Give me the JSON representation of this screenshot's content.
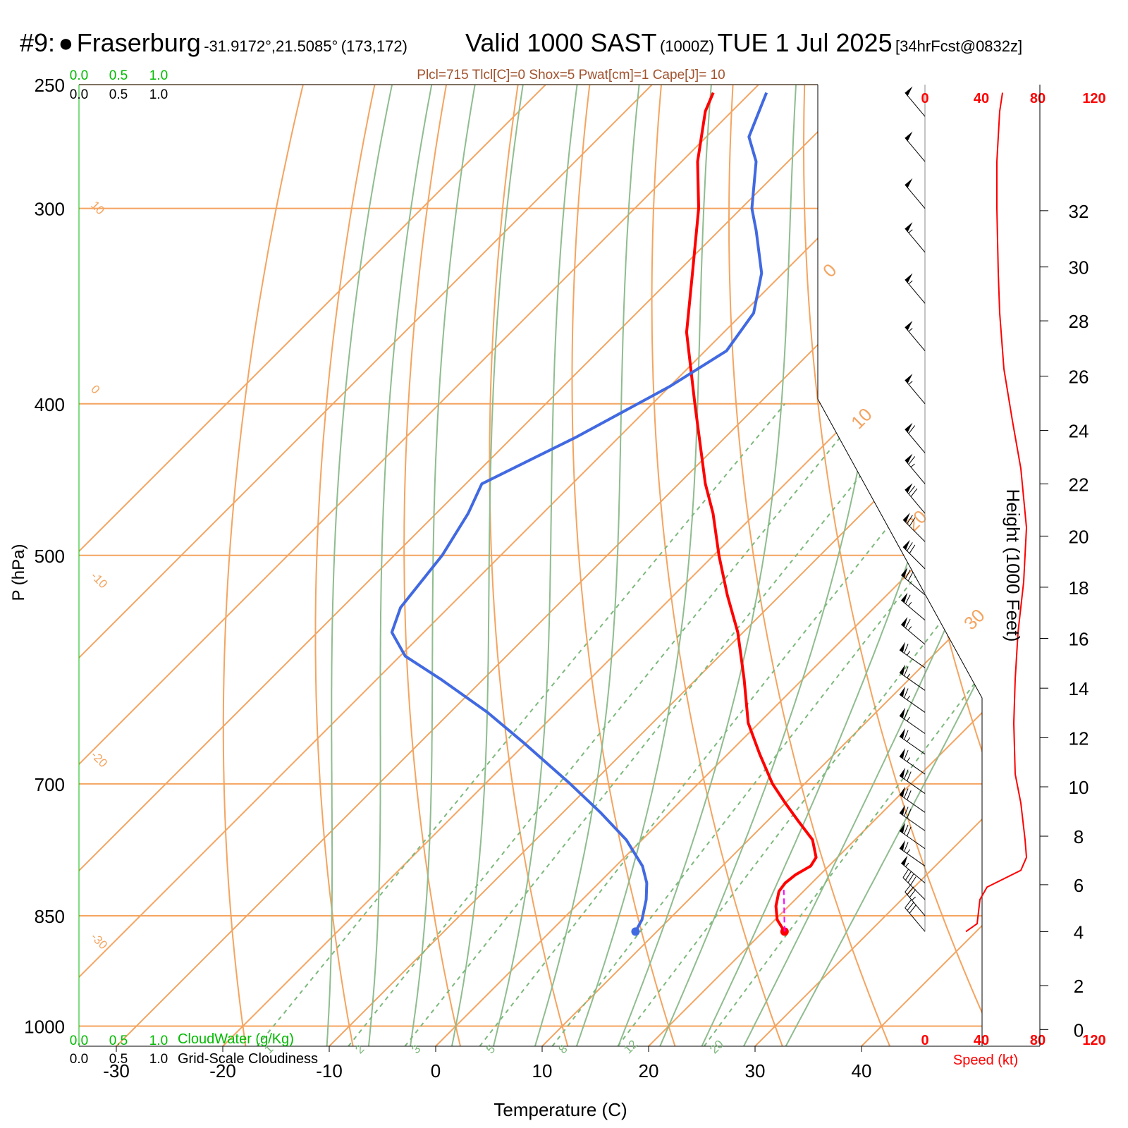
{
  "header": {
    "station_index": "#9:",
    "station_name": "Fraserburg",
    "coords": "-31.9172°,21.5085°",
    "grid": "(173,172)",
    "valid_label": "Valid 1000 SAST",
    "valid_z": "(1000Z)",
    "valid_date": "TUE 1 Jul 2025",
    "forecast": "[34hrFcst@0832z]"
  },
  "indices": "Plcl=715 Tlcl[C]=0 Shox=5 Pwat[cm]=1 Cape[J]= 10",
  "cloud_scale": {
    "ticks": [
      "0.0",
      "0.5",
      "1.0"
    ],
    "cloudwater_label": "CloudWater (g/Kg)",
    "cloudiness_label": "Grid-Scale Cloudiness"
  },
  "colors": {
    "temperature": "#ff0000",
    "dewpoint": "#4169e1",
    "isotherm": "#f4a460",
    "dry_adiabat": "#f4a460",
    "moist_adiabat": "#8fbc8f",
    "mixing_ratio": "#7cb87c",
    "parcel": "#ff00ff",
    "speed_axis": "#ff0000",
    "cloud_axis": "#00bb00"
  },
  "chart_data": {
    "type": "skew-t",
    "xlabel": "Temperature (C)",
    "ylabel": "P (hPa)",
    "x_ticks": [
      -30,
      -20,
      -10,
      0,
      10,
      20,
      30,
      40
    ],
    "p_ticks": [
      250,
      300,
      400,
      500,
      700,
      850,
      1000
    ],
    "p_range": [
      250,
      1030
    ],
    "x_range_at_bottom": [
      -33,
      48
    ],
    "temperature_profile": [
      {
        "p": 870,
        "t": 22.0
      },
      {
        "p": 855,
        "t": 20.2
      },
      {
        "p": 838,
        "t": 18.8
      },
      {
        "p": 820,
        "t": 17.7
      },
      {
        "p": 810,
        "t": 17.5
      },
      {
        "p": 800,
        "t": 17.7
      },
      {
        "p": 790,
        "t": 18.3
      },
      {
        "p": 780,
        "t": 18.0
      },
      {
        "p": 760,
        "t": 16.0
      },
      {
        "p": 740,
        "t": 13.0
      },
      {
        "p": 720,
        "t": 10.0
      },
      {
        "p": 700,
        "t": 7.0
      },
      {
        "p": 670,
        "t": 3.0
      },
      {
        "p": 640,
        "t": -1.0
      },
      {
        "p": 600,
        "t": -5.5
      },
      {
        "p": 560,
        "t": -10.5
      },
      {
        "p": 530,
        "t": -15.0
      },
      {
        "p": 500,
        "t": -19.5
      },
      {
        "p": 470,
        "t": -24.0
      },
      {
        "p": 450,
        "t": -27.5
      },
      {
        "p": 400,
        "t": -36.0
      },
      {
        "p": 360,
        "t": -43.5
      },
      {
        "p": 330,
        "t": -48.5
      },
      {
        "p": 300,
        "t": -54.0
      },
      {
        "p": 280,
        "t": -58.5
      },
      {
        "p": 260,
        "t": -62.5
      },
      {
        "p": 253,
        "t": -63.5
      }
    ],
    "dewpoint_profile": [
      {
        "p": 870,
        "t": 8.0
      },
      {
        "p": 855,
        "t": 7.5
      },
      {
        "p": 830,
        "t": 6.0
      },
      {
        "p": 810,
        "t": 4.5
      },
      {
        "p": 790,
        "t": 2.5
      },
      {
        "p": 760,
        "t": -1.5
      },
      {
        "p": 730,
        "t": -6.5
      },
      {
        "p": 700,
        "t": -12.0
      },
      {
        "p": 660,
        "t": -20.0
      },
      {
        "p": 630,
        "t": -26.5
      },
      {
        "p": 600,
        "t": -34.0
      },
      {
        "p": 580,
        "t": -39.5
      },
      {
        "p": 560,
        "t": -43.0
      },
      {
        "p": 540,
        "t": -44.5
      },
      {
        "p": 500,
        "t": -45.5
      },
      {
        "p": 470,
        "t": -47.0
      },
      {
        "p": 450,
        "t": -48.5
      },
      {
        "p": 420,
        "t": -44.0
      },
      {
        "p": 390,
        "t": -40.0
      },
      {
        "p": 370,
        "t": -38.0
      },
      {
        "p": 350,
        "t": -39.0
      },
      {
        "p": 330,
        "t": -42.0
      },
      {
        "p": 310,
        "t": -46.5
      },
      {
        "p": 300,
        "t": -49.0
      },
      {
        "p": 280,
        "t": -53.0
      },
      {
        "p": 270,
        "t": -56.0
      },
      {
        "p": 253,
        "t": -58.5
      }
    ],
    "parcel_path": [
      {
        "p": 870,
        "t": 22.0
      },
      {
        "p": 818,
        "t": 18.0
      }
    ],
    "isotherms": [
      -80,
      -70,
      -60,
      -50,
      -40,
      -30,
      -20,
      -10,
      0,
      10,
      20,
      30,
      40
    ],
    "isotherm_labels": [
      "10",
      "0",
      "-10",
      "-20",
      "-30",
      "0",
      "10",
      "20",
      "30"
    ],
    "dry_adiabats_theta_c": [
      -20,
      -10,
      0,
      10,
      20,
      30,
      40,
      50,
      60,
      70,
      80,
      90,
      100,
      110,
      120,
      130,
      140
    ],
    "moist_adiabats_thetaw_c": [
      -12,
      -8,
      -4,
      0,
      4,
      8,
      12,
      16,
      20,
      24,
      28,
      32
    ],
    "mixing_ratio_lines_gkg": [
      1,
      2,
      3,
      5,
      8,
      12,
      20
    ],
    "mixing_ratio_labels": [
      "1",
      "2",
      "3",
      "5",
      "8",
      "12",
      "20"
    ],
    "speed_axis": {
      "label": "Speed (kt)",
      "ticks": [
        "0",
        "40",
        "80",
        "120"
      ],
      "profile": [
        {
          "p": 870,
          "s": 29
        },
        {
          "p": 860,
          "s": 37
        },
        {
          "p": 830,
          "s": 39
        },
        {
          "p": 815,
          "s": 44
        },
        {
          "p": 795,
          "s": 68
        },
        {
          "p": 780,
          "s": 72
        },
        {
          "p": 760,
          "s": 71
        },
        {
          "p": 720,
          "s": 68
        },
        {
          "p": 690,
          "s": 64
        },
        {
          "p": 640,
          "s": 63
        },
        {
          "p": 600,
          "s": 64
        },
        {
          "p": 560,
          "s": 66
        },
        {
          "p": 520,
          "s": 70
        },
        {
          "p": 480,
          "s": 72
        },
        {
          "p": 440,
          "s": 68
        },
        {
          "p": 410,
          "s": 62
        },
        {
          "p": 380,
          "s": 56
        },
        {
          "p": 350,
          "s": 53
        },
        {
          "p": 330,
          "s": 52
        },
        {
          "p": 300,
          "s": 51
        },
        {
          "p": 280,
          "s": 51
        },
        {
          "p": 260,
          "s": 53
        },
        {
          "p": 253,
          "s": 55
        }
      ]
    },
    "wind_barbs": [
      {
        "p": 870,
        "dir": 320,
        "spd": 30
      },
      {
        "p": 850,
        "dir": 320,
        "spd": 35
      },
      {
        "p": 830,
        "dir": 315,
        "spd": 40
      },
      {
        "p": 810,
        "dir": 310,
        "spd": 55
      },
      {
        "p": 790,
        "dir": 305,
        "spd": 65
      },
      {
        "p": 770,
        "dir": 305,
        "spd": 70
      },
      {
        "p": 750,
        "dir": 305,
        "spd": 70
      },
      {
        "p": 730,
        "dir": 305,
        "spd": 70
      },
      {
        "p": 710,
        "dir": 305,
        "spd": 70
      },
      {
        "p": 690,
        "dir": 305,
        "spd": 65
      },
      {
        "p": 670,
        "dir": 305,
        "spd": 65
      },
      {
        "p": 650,
        "dir": 305,
        "spd": 65
      },
      {
        "p": 630,
        "dir": 305,
        "spd": 65
      },
      {
        "p": 610,
        "dir": 305,
        "spd": 65
      },
      {
        "p": 590,
        "dir": 305,
        "spd": 65
      },
      {
        "p": 570,
        "dir": 310,
        "spd": 65
      },
      {
        "p": 550,
        "dir": 310,
        "spd": 65
      },
      {
        "p": 530,
        "dir": 310,
        "spd": 70
      },
      {
        "p": 510,
        "dir": 315,
        "spd": 70
      },
      {
        "p": 490,
        "dir": 315,
        "spd": 70
      },
      {
        "p": 470,
        "dir": 320,
        "spd": 70
      },
      {
        "p": 450,
        "dir": 320,
        "spd": 65
      },
      {
        "p": 430,
        "dir": 320,
        "spd": 60
      },
      {
        "p": 400,
        "dir": 320,
        "spd": 55
      },
      {
        "p": 370,
        "dir": 320,
        "spd": 55
      },
      {
        "p": 345,
        "dir": 320,
        "spd": 55
      },
      {
        "p": 320,
        "dir": 320,
        "spd": 55
      },
      {
        "p": 300,
        "dir": 320,
        "spd": 50
      },
      {
        "p": 280,
        "dir": 320,
        "spd": 50
      },
      {
        "p": 262,
        "dir": 320,
        "spd": 50
      }
    ],
    "height_axis": {
      "label": "Height (1000 Feet)",
      "ticks": [
        {
          "kft": 0,
          "p": 1005
        },
        {
          "kft": 2,
          "p": 942
        },
        {
          "kft": 4,
          "p": 870
        },
        {
          "kft": 6,
          "p": 812
        },
        {
          "kft": 8,
          "p": 756
        },
        {
          "kft": 10,
          "p": 703
        },
        {
          "kft": 12,
          "p": 654
        },
        {
          "kft": 14,
          "p": 608
        },
        {
          "kft": 16,
          "p": 565
        },
        {
          "kft": 18,
          "p": 524
        },
        {
          "kft": 20,
          "p": 486
        },
        {
          "kft": 22,
          "p": 450
        },
        {
          "kft": 24,
          "p": 416
        },
        {
          "kft": 26,
          "p": 384
        },
        {
          "kft": 28,
          "p": 354
        },
        {
          "kft": 30,
          "p": 327
        },
        {
          "kft": 32,
          "p": 301
        }
      ]
    }
  }
}
